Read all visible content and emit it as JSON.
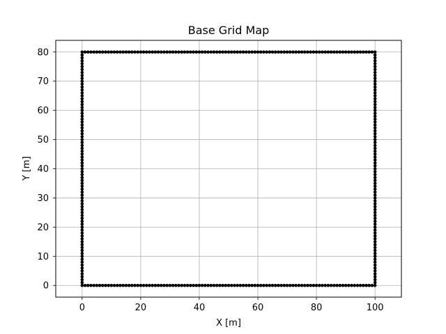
{
  "chart_data": {
    "type": "scatter",
    "title": "Base Grid Map",
    "xlabel": "X [m]",
    "ylabel": "Y [m]",
    "xlim": [
      -9,
      109
    ],
    "ylim": [
      -4,
      84
    ],
    "xticks": [
      0,
      20,
      40,
      60,
      80,
      100
    ],
    "yticks": [
      0,
      10,
      20,
      30,
      40,
      50,
      60,
      70,
      80
    ],
    "grid": true,
    "marker_color": "#000000",
    "grid_color": "#b0b0b0",
    "series": [
      {
        "marker": "dot",
        "boundary": {
          "x_min": 0,
          "x_max": 100,
          "y_min": 0,
          "y_max": 80,
          "step": 1
        }
      }
    ]
  }
}
